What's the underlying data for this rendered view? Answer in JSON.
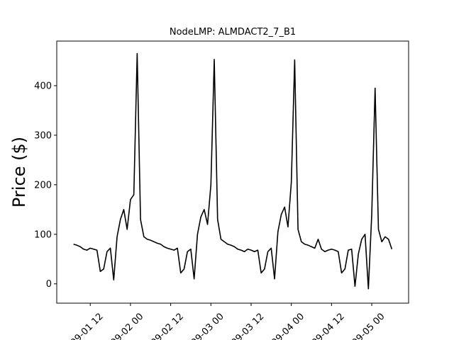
{
  "chart_data": {
    "type": "line",
    "title": "NodeLMP: ALMDACT2_7_B1",
    "y_label": "Price ($)",
    "x": [
      "09-01 07",
      "09-01 08",
      "09-01 09",
      "09-01 10",
      "09-01 11",
      "09-01 12",
      "09-01 13",
      "09-01 14",
      "09-01 15",
      "09-01 16",
      "09-01 17",
      "09-01 18",
      "09-01 19",
      "09-01 20",
      "09-01 21",
      "09-01 22",
      "09-01 23",
      "09-02 00",
      "09-02 01",
      "09-02 02",
      "09-02 03",
      "09-02 04",
      "09-02 05",
      "09-02 06",
      "09-02 07",
      "09-02 08",
      "09-02 09",
      "09-02 10",
      "09-02 11",
      "09-02 12",
      "09-02 13",
      "09-02 14",
      "09-02 15",
      "09-02 16",
      "09-02 17",
      "09-02 18",
      "09-02 19",
      "09-02 20",
      "09-02 21",
      "09-02 22",
      "09-02 23",
      "09-03 00",
      "09-03 01",
      "09-03 02",
      "09-03 03",
      "09-03 04",
      "09-03 05",
      "09-03 06",
      "09-03 07",
      "09-03 08",
      "09-03 09",
      "09-03 10",
      "09-03 11",
      "09-03 12",
      "09-03 13",
      "09-03 14",
      "09-03 15",
      "09-03 16",
      "09-03 17",
      "09-03 18",
      "09-03 19",
      "09-03 20",
      "09-03 21",
      "09-03 22",
      "09-03 23",
      "09-04 00",
      "09-04 01",
      "09-04 02",
      "09-04 03",
      "09-04 04",
      "09-04 05",
      "09-04 06",
      "09-04 07",
      "09-04 08",
      "09-04 09",
      "09-04 10",
      "09-04 11",
      "09-04 12",
      "09-04 13",
      "09-04 14",
      "09-04 15",
      "09-04 16",
      "09-04 17",
      "09-04 18",
      "09-04 19",
      "09-04 20",
      "09-04 21",
      "09-04 22",
      "09-04 23",
      "09-05 00",
      "09-05 01",
      "09-05 02",
      "09-05 03",
      "09-05 04",
      "09-05 05",
      "09-05 06"
    ],
    "values": [
      80,
      78,
      75,
      70,
      68,
      72,
      70,
      68,
      25,
      30,
      65,
      72,
      8,
      95,
      130,
      150,
      110,
      170,
      180,
      465,
      130,
      95,
      90,
      88,
      85,
      82,
      80,
      75,
      72,
      70,
      68,
      72,
      22,
      30,
      65,
      70,
      10,
      100,
      135,
      150,
      120,
      200,
      453,
      130,
      90,
      85,
      80,
      78,
      75,
      70,
      68,
      65,
      70,
      68,
      65,
      68,
      22,
      30,
      65,
      72,
      10,
      105,
      140,
      155,
      115,
      205,
      452,
      110,
      85,
      80,
      78,
      75,
      72,
      90,
      70,
      65,
      68,
      70,
      68,
      65,
      22,
      30,
      68,
      70,
      -5,
      60,
      90,
      100,
      -10,
      140,
      395,
      110,
      85,
      95,
      90,
      70
    ],
    "color": "#000000",
    "xlim": [
      "09-01 02",
      "09-05 11"
    ],
    "xticks": [
      "09-01 12",
      "09-02 00",
      "09-02 12",
      "09-03 00",
      "09-03 12",
      "09-04 00",
      "09-04 12",
      "09-05 00"
    ],
    "ylim": [
      -39,
      490
    ],
    "yticks": [
      0,
      100,
      200,
      300,
      400
    ]
  }
}
